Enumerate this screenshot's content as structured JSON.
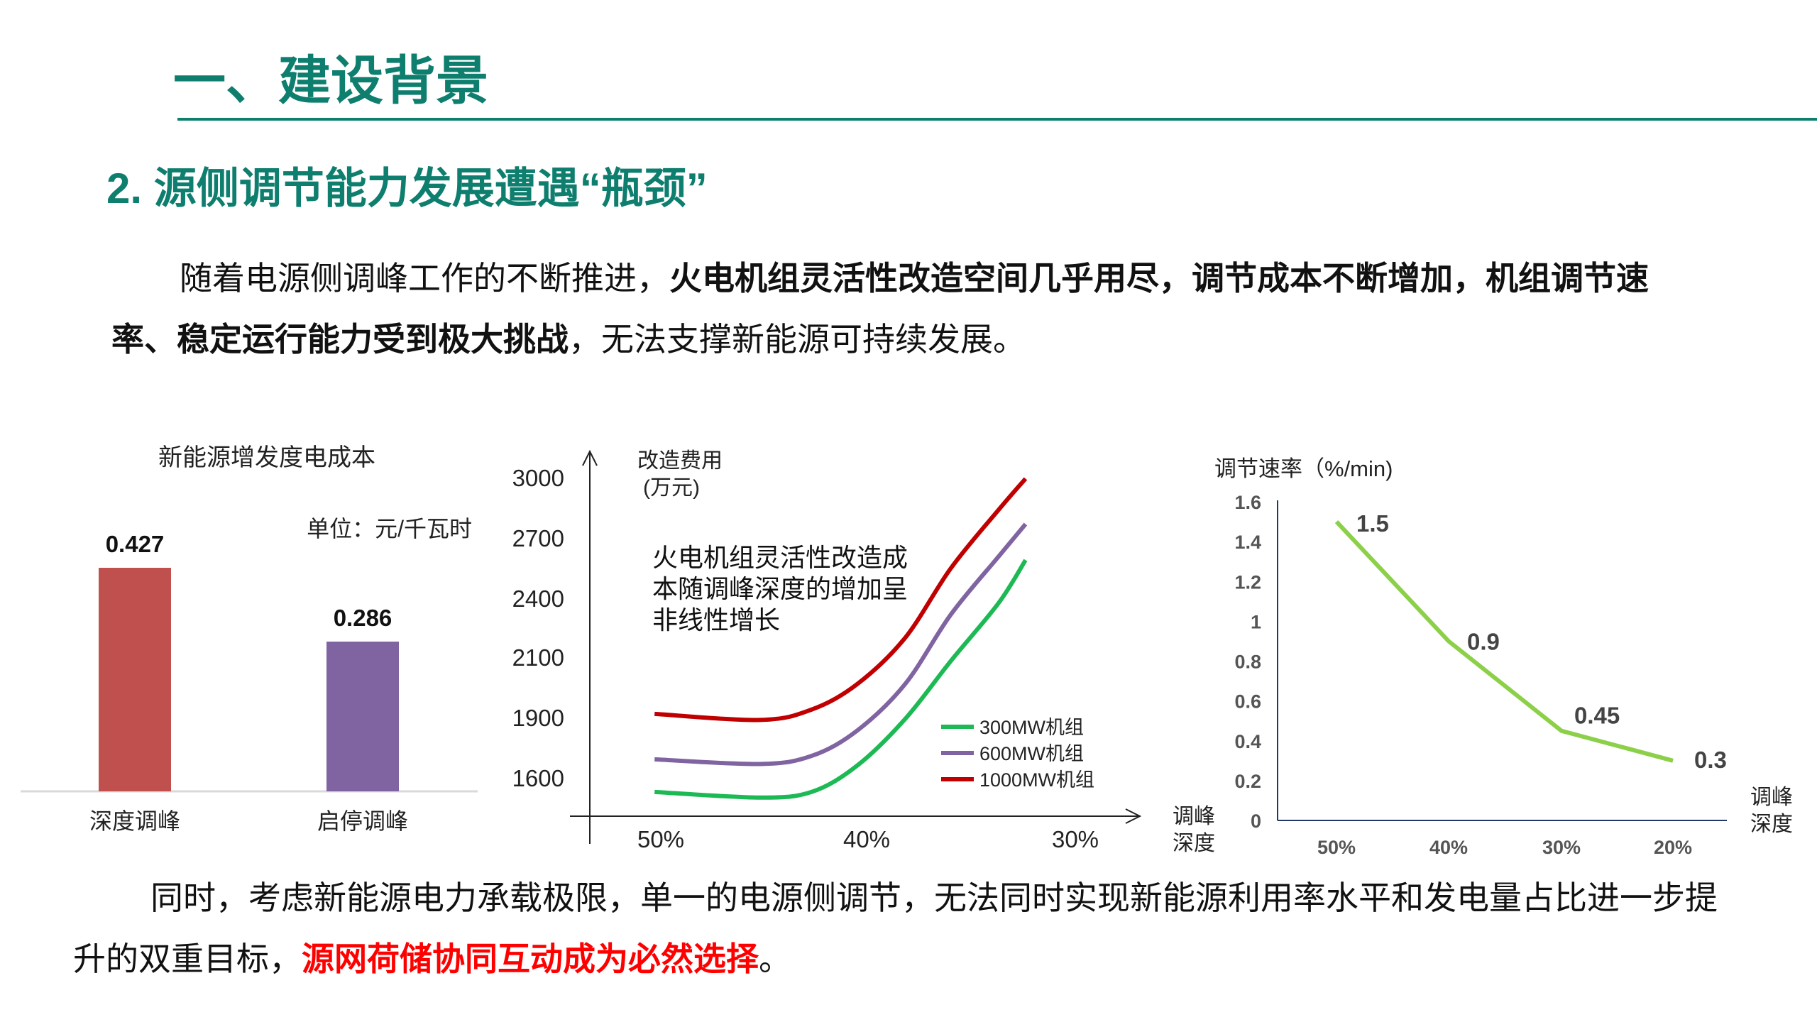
{
  "header": {
    "title": "一、建设背景",
    "subtitle": "2. 源侧调节能力发展遭遇“瓶颈”",
    "accent_color": "#0e7e6e"
  },
  "paragraph1": {
    "normal_1": "随着电源侧调峰工作的不断推进，",
    "bold": "火电机组灵活性改造空间几乎用尽，调节成本不断增加，机组调节速率、稳定运行能力受到极大挑战",
    "normal_2": "，无法支撑新能源可持续发展。"
  },
  "paragraph2": {
    "normal_1": "同时，考虑新能源电力承载极限，单一的电源侧调节，无法同时实现新能源利用率水平和发电量占比进一步提升的双重目标，",
    "highlight": "源网荷储协同互动成为必然选择",
    "normal_2": "。",
    "highlight_color": "#ff0000"
  },
  "chart_data": [
    {
      "type": "bar",
      "title": "新能源增发度电成本",
      "unit_label": "单位：元/千瓦时",
      "categories": [
        "深度调峰",
        "启停调峰"
      ],
      "values": [
        0.427,
        0.286
      ],
      "data_labels": [
        "0.427",
        "0.286"
      ],
      "colors": [
        "#c0504d",
        "#8064a2"
      ],
      "ylim": [
        0,
        0.427
      ],
      "grid": false
    },
    {
      "type": "line",
      "ylabel": "改造费用",
      "ylabel_unit": "(万元)",
      "xlabel": "调峰深度",
      "x_ticks": [
        "50%",
        "40%",
        "30%"
      ],
      "x_tick_values": [
        50,
        40,
        30
      ],
      "y_ticks": [
        1600,
        1900,
        2100,
        2400,
        2700,
        3000
      ],
      "annotation": "火电机组灵活性改造成本随调峰深度的增加呈非线性增长",
      "annotation_lines": [
        "火电机组灵活性改造成",
        "本随调峰深度的增加呈",
        "非线性增长"
      ],
      "legend_position": "right",
      "grid": false,
      "series": [
        {
          "name": "300MW机组",
          "color": "#1db954",
          "x": [
            50.3,
            45.2,
            42.7,
            40.5,
            38.2,
            36.0,
            33.7,
            32.4
          ],
          "y": [
            1530,
            1502,
            1531,
            1663,
            1894,
            2088,
            2376,
            2590
          ]
        },
        {
          "name": "600MW机组",
          "color": "#8064a2",
          "x": [
            50.3,
            45.2,
            42.7,
            40.5,
            38.2,
            36.0,
            33.7,
            32.4
          ],
          "y": [
            1692,
            1669,
            1710,
            1837,
            2012,
            2318,
            2608,
            2769
          ]
        },
        {
          "name": "1000MW机组",
          "color": "#c00000",
          "x": [
            50.3,
            45.2,
            42.7,
            40.5,
            38.2,
            36.0,
            33.7,
            32.4
          ],
          "y": [
            1912,
            1888,
            1927,
            2012,
            2200,
            2550,
            2840,
            2995
          ]
        }
      ]
    },
    {
      "type": "line",
      "ylabel": "调节速率（%/min)",
      "xlabel": "调峰深度",
      "categories": [
        "50%",
        "40%",
        "30%",
        "20%"
      ],
      "values": [
        1.5,
        0.9,
        0.45,
        0.3
      ],
      "data_labels": [
        "1.5",
        "0.9",
        "0.45",
        "0.3"
      ],
      "y_ticks": [
        "0",
        "0.2",
        "0.4",
        "0.6",
        "0.8",
        "1",
        "1.2",
        "1.4",
        "1.6"
      ],
      "ylim": [
        0,
        1.6
      ],
      "color": "#8cd04a",
      "grid": false
    }
  ]
}
